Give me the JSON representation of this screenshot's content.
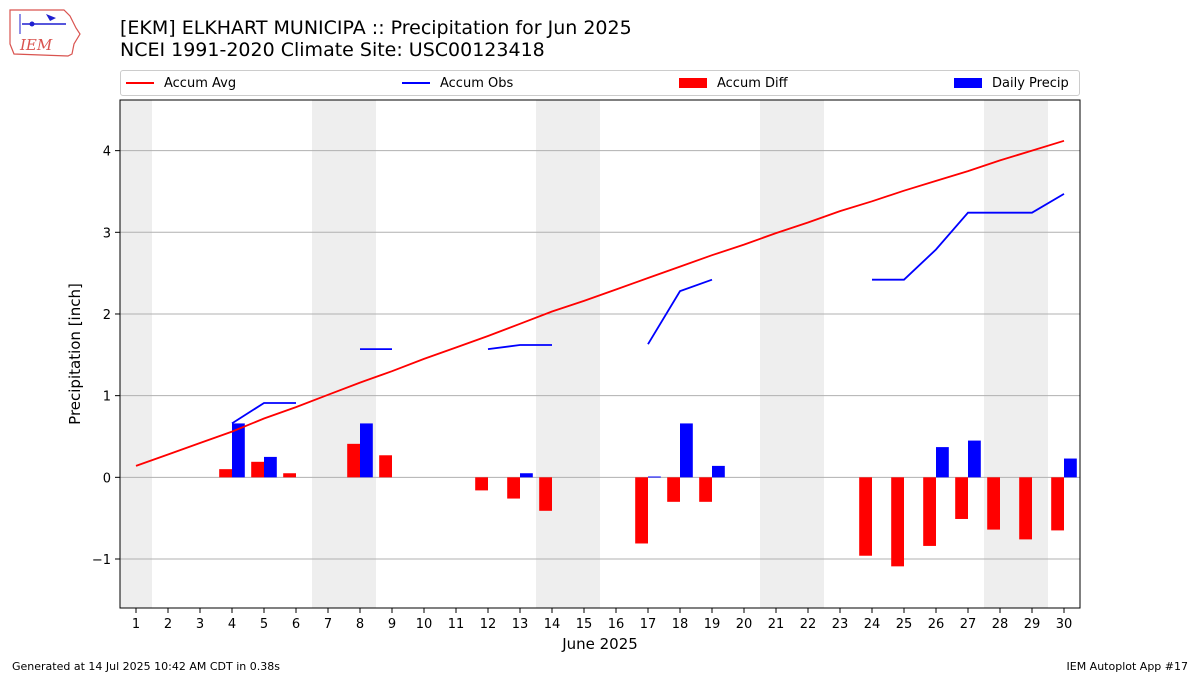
{
  "logo": {
    "text": "IEM",
    "primary": "#d9534f",
    "secondary": "#1f1fd0"
  },
  "chart_data": {
    "type": "bar",
    "title": "[EKM] ELKHART MUNICIPA :: Precipitation for Jun 2025",
    "subtitle": "NCEI 1991-2020 Climate Site: USC00123418",
    "xlabel": "June 2025",
    "ylabel": "Precipitation [inch]",
    "ylim": [
      -1.6,
      4.62
    ],
    "yticks": [
      -1,
      0,
      1,
      2,
      3,
      4
    ],
    "ytick_labels": [
      "−1",
      "0",
      "1",
      "2",
      "3",
      "4"
    ],
    "grid": "y",
    "legend_position": "top",
    "shaded_weekends": [
      [
        1,
        1
      ],
      [
        7,
        8
      ],
      [
        14,
        15
      ],
      [
        21,
        22
      ],
      [
        28,
        29
      ]
    ],
    "days": [
      1,
      2,
      3,
      4,
      5,
      6,
      7,
      8,
      9,
      10,
      11,
      12,
      13,
      14,
      15,
      16,
      17,
      18,
      19,
      20,
      21,
      22,
      23,
      24,
      25,
      26,
      27,
      28,
      29,
      30
    ],
    "series": [
      {
        "name": "Accum Avg",
        "kind": "line",
        "color": "#ff0000",
        "values": [
          0.14,
          0.28,
          0.42,
          0.56,
          0.72,
          0.86,
          1.01,
          1.16,
          1.3,
          1.45,
          1.59,
          1.73,
          1.88,
          2.03,
          2.16,
          2.3,
          2.44,
          2.58,
          2.72,
          2.85,
          2.99,
          3.12,
          3.26,
          3.38,
          3.51,
          3.63,
          3.75,
          3.88,
          4.0,
          4.12
        ]
      },
      {
        "name": "Accum Obs",
        "kind": "line",
        "color": "#0000ff",
        "values": [
          null,
          null,
          null,
          0.66,
          0.91,
          0.91,
          null,
          1.57,
          1.57,
          null,
          null,
          1.57,
          1.62,
          1.62,
          null,
          null,
          1.63,
          2.28,
          2.42,
          null,
          null,
          null,
          null,
          2.42,
          2.42,
          2.79,
          3.24,
          3.24,
          3.24,
          3.47
        ]
      },
      {
        "name": "Accum Diff",
        "kind": "bar",
        "color": "#ff0000",
        "offset": "left",
        "values": [
          null,
          null,
          null,
          0.1,
          0.19,
          0.05,
          null,
          0.41,
          0.27,
          null,
          null,
          -0.16,
          -0.26,
          -0.41,
          null,
          null,
          -0.81,
          -0.3,
          -0.3,
          null,
          null,
          null,
          null,
          -0.96,
          -1.09,
          -0.84,
          -0.51,
          -0.64,
          -0.76,
          -0.65
        ]
      },
      {
        "name": "Daily Precip",
        "kind": "bar",
        "color": "#0000ff",
        "offset": "right",
        "values": [
          null,
          null,
          null,
          0.66,
          0.25,
          null,
          null,
          0.66,
          null,
          null,
          null,
          null,
          0.05,
          null,
          null,
          null,
          0.01,
          0.66,
          0.14,
          null,
          null,
          null,
          null,
          null,
          null,
          0.37,
          0.45,
          null,
          null,
          0.23
        ]
      }
    ]
  },
  "footer": {
    "left": "Generated at 14 Jul 2025 10:42 AM CDT in 0.38s",
    "right": "IEM Autoplot App #17"
  }
}
